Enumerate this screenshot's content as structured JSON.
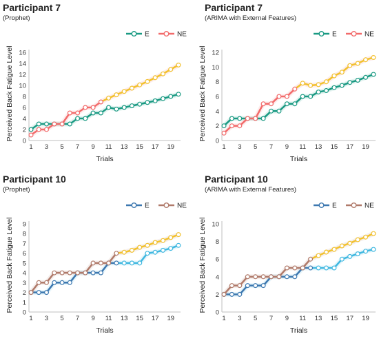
{
  "chart_data": [
    {
      "type": "line",
      "title": "Participant 7",
      "subtitle": "(Prophet)",
      "xlabel": "Trials",
      "ylabel": "Perceived Back Fatigue Level",
      "ylim": [
        0,
        16
      ],
      "yticks": [
        0,
        2,
        4,
        6,
        8,
        10,
        12,
        14,
        16
      ],
      "xticks": [
        1,
        3,
        5,
        7,
        9,
        11,
        13,
        15,
        17,
        19
      ],
      "forecast_from": 10,
      "x": [
        1,
        2,
        3,
        4,
        5,
        6,
        7,
        8,
        9,
        10,
        11,
        12,
        13,
        14,
        15,
        16,
        17,
        18,
        19,
        20
      ],
      "series": [
        {
          "name": "E",
          "color": "#1a9a83",
          "forecast_color": "#1a9a83",
          "values": [
            2,
            3,
            3,
            3,
            3,
            3,
            4,
            4,
            5,
            5,
            6,
            5.7,
            6,
            6.3,
            6.6,
            6.9,
            7.2,
            7.6,
            8,
            8.4
          ]
        },
        {
          "name": "NE",
          "color": "#f26b6b",
          "forecast_color": "#f2c12e",
          "values": [
            1,
            2,
            2,
            3,
            3,
            5,
            5,
            6,
            6,
            7,
            7.7,
            8.3,
            8.9,
            9.5,
            10.1,
            10.7,
            11.4,
            12.1,
            12.9,
            13.7
          ]
        }
      ]
    },
    {
      "type": "line",
      "title": "Participant 7",
      "subtitle": "(ARIMA with External Features)",
      "xlabel": "Trials",
      "ylabel": "Perceived Back Fatigue Level",
      "ylim": [
        0,
        12
      ],
      "yticks": [
        0,
        2,
        4,
        6,
        8,
        10,
        12
      ],
      "xticks": [
        1,
        3,
        5,
        7,
        9,
        11,
        13,
        15,
        17,
        19
      ],
      "forecast_from": 10,
      "x": [
        1,
        2,
        3,
        4,
        5,
        6,
        7,
        8,
        9,
        10,
        11,
        12,
        13,
        14,
        15,
        16,
        17,
        18,
        19,
        20
      ],
      "series": [
        {
          "name": "E",
          "color": "#1a9a83",
          "forecast_color": "#1a9a83",
          "values": [
            2,
            3,
            3,
            3,
            3,
            3,
            4,
            4,
            5,
            5,
            6,
            6,
            6.6,
            6.8,
            7.2,
            7.5,
            7.9,
            8.2,
            8.6,
            9
          ]
        },
        {
          "name": "NE",
          "color": "#f26b6b",
          "forecast_color": "#f2c12e",
          "values": [
            1,
            2,
            2,
            3,
            3,
            5,
            5,
            6,
            6,
            7,
            7.8,
            7.5,
            7.6,
            8,
            8.8,
            9.3,
            10.2,
            10.5,
            11,
            11.3
          ]
        }
      ]
    },
    {
      "type": "line",
      "title": "Participant 10",
      "subtitle": "(Prophet)",
      "xlabel": "Trials",
      "ylabel": "Perceived Back Fatigue Level",
      "ylim": [
        0,
        9
      ],
      "yticks": [
        0,
        1,
        2,
        3,
        4,
        5,
        6,
        7,
        8,
        9
      ],
      "xticks": [
        1,
        3,
        5,
        7,
        9,
        11,
        13,
        15,
        17,
        19
      ],
      "forecast_from": 12,
      "x": [
        1,
        2,
        3,
        4,
        5,
        6,
        7,
        8,
        9,
        10,
        11,
        12,
        13,
        14,
        15,
        16,
        17,
        18,
        19,
        20
      ],
      "series": [
        {
          "name": "E",
          "color": "#3d78b0",
          "forecast_color": "#40b8e0",
          "values": [
            2,
            2,
            2,
            3,
            3,
            3,
            4,
            4,
            4,
            4,
            5,
            5,
            5,
            5,
            5,
            6,
            6.1,
            6.3,
            6.5,
            6.8
          ]
        },
        {
          "name": "NE",
          "color": "#b07a6a",
          "forecast_color": "#f2c12e",
          "values": [
            2,
            3,
            3,
            4,
            4,
            4,
            4,
            4,
            5,
            5,
            5,
            6,
            6.1,
            6.3,
            6.6,
            6.8,
            7.1,
            7.3,
            7.6,
            7.9
          ]
        }
      ]
    },
    {
      "type": "line",
      "title": "Participant 10",
      "subtitle": "(ARIMA with External Features)",
      "xlabel": "Trials",
      "ylabel": "Perceived Back Fatigue Level",
      "ylim": [
        0,
        10
      ],
      "yticks": [
        0,
        2,
        4,
        6,
        8,
        10
      ],
      "xticks": [
        1,
        3,
        5,
        7,
        9,
        11,
        13,
        15,
        17,
        19
      ],
      "forecast_from": 12,
      "x": [
        1,
        2,
        3,
        4,
        5,
        6,
        7,
        8,
        9,
        10,
        11,
        12,
        13,
        14,
        15,
        16,
        17,
        18,
        19,
        20
      ],
      "series": [
        {
          "name": "E",
          "color": "#3d78b0",
          "forecast_color": "#40b8e0",
          "values": [
            2,
            2,
            2,
            3,
            3,
            3,
            4,
            4,
            4,
            4,
            5,
            5,
            5,
            5,
            5,
            6,
            6.3,
            6.6,
            6.9,
            7.1
          ]
        },
        {
          "name": "NE",
          "color": "#b07a6a",
          "forecast_color": "#f2c12e",
          "values": [
            2,
            3,
            3,
            4,
            4,
            4,
            4,
            4,
            5,
            5,
            5,
            6,
            6.4,
            6.8,
            7.1,
            7.5,
            7.8,
            8.2,
            8.5,
            8.9
          ]
        }
      ]
    }
  ]
}
